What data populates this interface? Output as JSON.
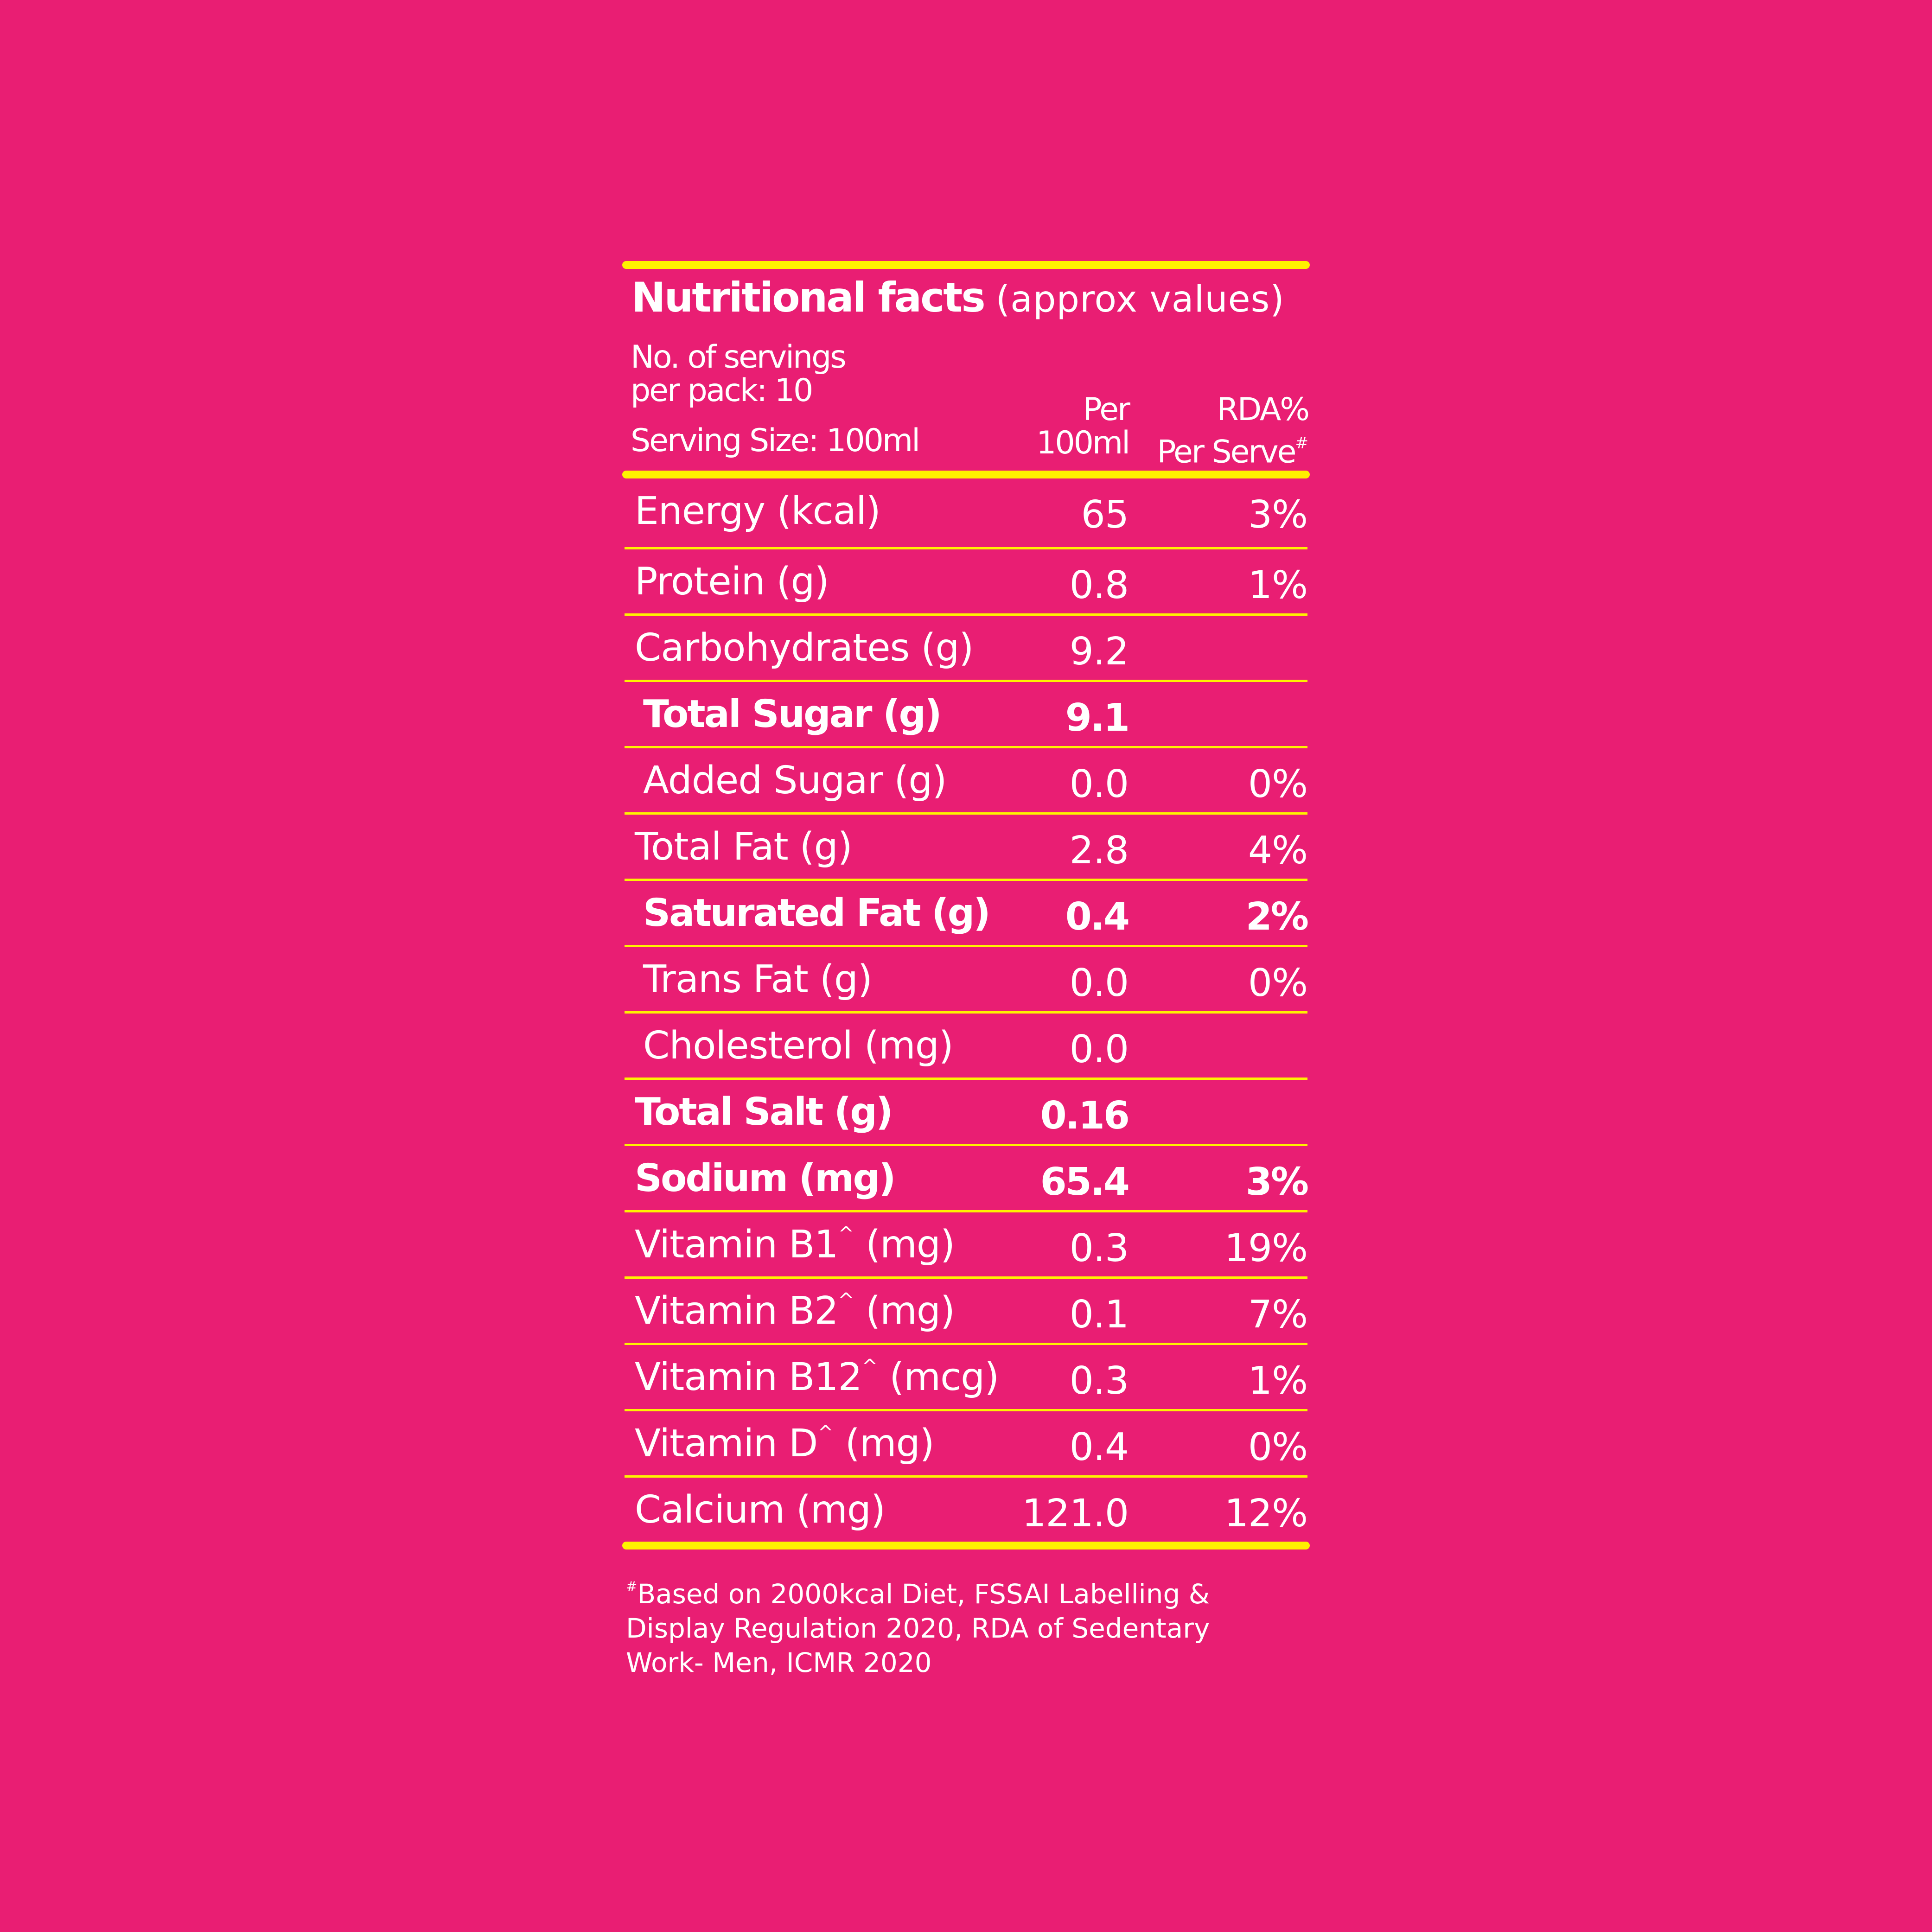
{
  "colors": {
    "background": "#E91E73",
    "accent": "#FFF200",
    "text": "#FFFFFF"
  },
  "header": {
    "title": "Nutritional facts",
    "subtitle": "(approx values)",
    "servings_line1": "No. of servings",
    "servings_line2": "per pack: 10",
    "serving_size": "Serving Size: 100ml",
    "col_per_line1": "Per",
    "col_per_line2": "100ml",
    "col_rda_line1": "RDA%",
    "col_rda_line2": "Per Serve",
    "col_rda_mark": "#"
  },
  "rows": [
    {
      "label": "Energy (kcal)",
      "sup": "",
      "unit": "",
      "value": "65",
      "rda": "3%",
      "bold": false,
      "indent": false
    },
    {
      "label": "Protein (g)",
      "sup": "",
      "unit": "",
      "value": "0.8",
      "rda": "1%",
      "bold": false,
      "indent": false
    },
    {
      "label": "Carbohydrates (g)",
      "sup": "",
      "unit": "",
      "value": "9.2",
      "rda": "",
      "bold": false,
      "indent": false
    },
    {
      "label": "Total Sugar (g)",
      "sup": "",
      "unit": "",
      "value": "9.1",
      "rda": "",
      "bold": true,
      "indent": true
    },
    {
      "label": "Added Sugar (g)",
      "sup": "",
      "unit": "",
      "value": "0.0",
      "rda": "0%",
      "bold": false,
      "indent": true
    },
    {
      "label": "Total Fat (g)",
      "sup": "",
      "unit": "",
      "value": "2.8",
      "rda": "4%",
      "bold": false,
      "indent": false
    },
    {
      "label": "Saturated Fat (g)",
      "sup": "",
      "unit": "",
      "value": "0.4",
      "rda": "2%",
      "bold": true,
      "indent": true
    },
    {
      "label": "Trans Fat (g)",
      "sup": "",
      "unit": "",
      "value": "0.0",
      "rda": "0%",
      "bold": false,
      "indent": true
    },
    {
      "label": "Cholesterol (mg)",
      "sup": "",
      "unit": "",
      "value": "0.0",
      "rda": "",
      "bold": false,
      "indent": true
    },
    {
      "label": "Total Salt (g)",
      "sup": "",
      "unit": "",
      "value": "0.16",
      "rda": "",
      "bold": true,
      "indent": false
    },
    {
      "label": "Sodium (mg)",
      "sup": "",
      "unit": "",
      "value": "65.4",
      "rda": "3%",
      "bold": true,
      "indent": false
    },
    {
      "label": "Vitamin B1",
      "sup": "^",
      "unit": " (mg)",
      "value": "0.3",
      "rda": "19%",
      "bold": false,
      "indent": false
    },
    {
      "label": "Vitamin B2",
      "sup": "^",
      "unit": " (mg)",
      "value": "0.1",
      "rda": "7%",
      "bold": false,
      "indent": false
    },
    {
      "label": "Vitamin B12",
      "sup": "^",
      "unit": " (mcg)",
      "value": "0.3",
      "rda": "1%",
      "bold": false,
      "indent": false
    },
    {
      "label": "Vitamin D",
      "sup": "^",
      "unit": " (mg)",
      "value": "0.4",
      "rda": "0%",
      "bold": false,
      "indent": false
    },
    {
      "label": "Calcium (mg)",
      "sup": "",
      "unit": "",
      "value": "121.0",
      "rda": "12%",
      "bold": false,
      "indent": false
    }
  ],
  "footer": {
    "mark": "#",
    "line1": "Based on 2000kcal Diet, FSSAI Labelling &",
    "line2": "Display Regulation 2020, RDA of Sedentary",
    "line3": "Work- Men, ICMR 2020"
  }
}
